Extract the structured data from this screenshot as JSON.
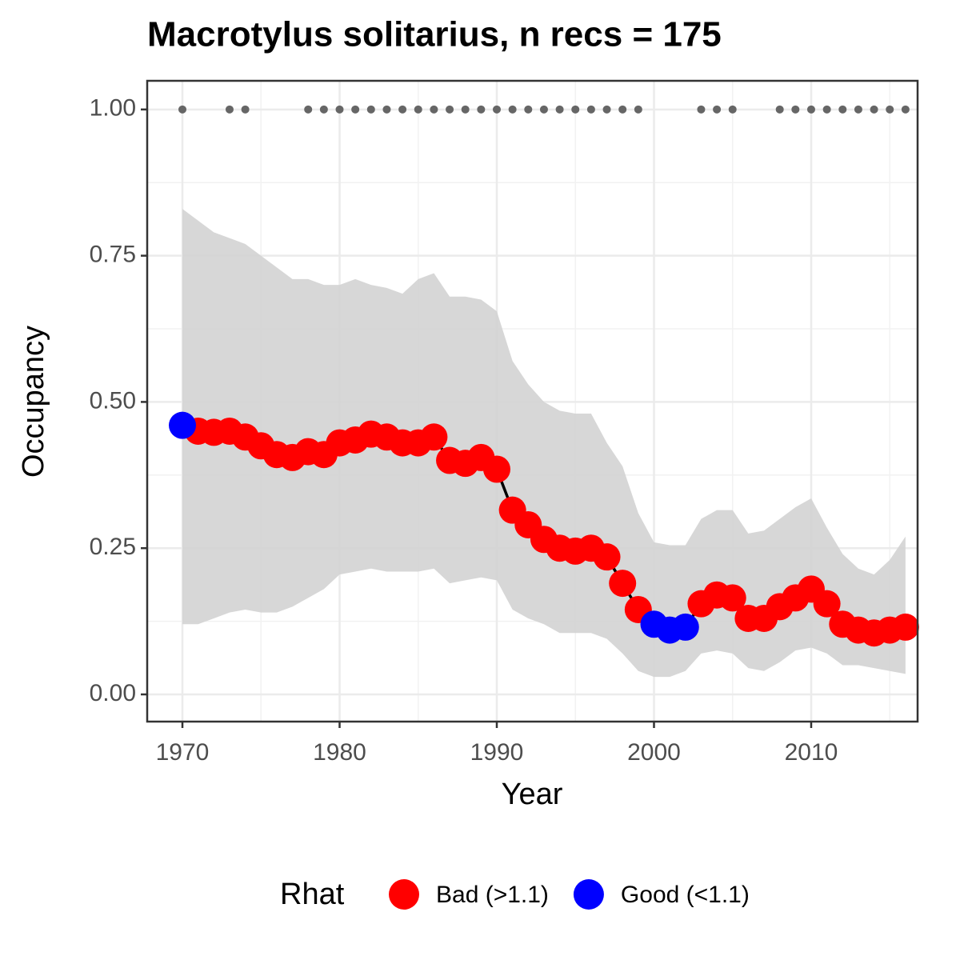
{
  "chart_data": {
    "type": "line",
    "title": "Macrotylus solitarius, n recs = 175",
    "x_label": "Year",
    "y_label": "Occupancy",
    "legend_title": "Rhat",
    "x": [
      1970,
      1971,
      1972,
      1973,
      1974,
      1975,
      1976,
      1977,
      1978,
      1979,
      1980,
      1981,
      1982,
      1983,
      1984,
      1985,
      1986,
      1987,
      1988,
      1989,
      1990,
      1991,
      1992,
      1993,
      1994,
      1995,
      1996,
      1997,
      1998,
      1999,
      2000,
      2001,
      2002,
      2003,
      2004,
      2005,
      2006,
      2007,
      2008,
      2009,
      2010,
      2011,
      2012,
      2013,
      2014,
      2015,
      2016
    ],
    "series": [
      {
        "name": "Bad (>1.1)",
        "color": "#ff0000",
        "values": [
          null,
          0.45,
          0.448,
          0.45,
          0.44,
          0.425,
          0.41,
          0.405,
          0.415,
          0.41,
          0.43,
          0.435,
          0.445,
          0.44,
          0.43,
          0.43,
          0.44,
          0.4,
          0.395,
          0.405,
          0.385,
          0.315,
          0.29,
          0.265,
          0.25,
          0.245,
          0.25,
          0.235,
          0.19,
          0.145,
          null,
          null,
          null,
          0.155,
          0.17,
          0.165,
          0.13,
          0.13,
          0.15,
          0.165,
          0.18,
          0.155,
          0.12,
          0.11,
          0.105,
          0.11,
          0.115
        ]
      },
      {
        "name": "Good (<1.1)",
        "color": "#0000ff",
        "values": [
          0.46,
          null,
          null,
          null,
          null,
          null,
          null,
          null,
          null,
          null,
          null,
          null,
          null,
          null,
          null,
          null,
          null,
          null,
          null,
          null,
          null,
          null,
          null,
          null,
          null,
          null,
          null,
          null,
          null,
          null,
          0.12,
          0.11,
          0.115,
          null,
          null,
          null,
          null,
          null,
          null,
          null,
          null,
          null,
          null,
          null,
          null,
          null,
          null
        ]
      }
    ],
    "band": {
      "color": "#d3d3d3",
      "upper": [
        0.83,
        0.81,
        0.79,
        0.78,
        0.77,
        0.75,
        0.73,
        0.71,
        0.71,
        0.7,
        0.7,
        0.71,
        0.7,
        0.695,
        0.685,
        0.71,
        0.72,
        0.68,
        0.68,
        0.675,
        0.655,
        0.57,
        0.53,
        0.5,
        0.485,
        0.48,
        0.48,
        0.43,
        0.39,
        0.31,
        0.26,
        0.255,
        0.255,
        0.3,
        0.315,
        0.315,
        0.275,
        0.28,
        0.3,
        0.32,
        0.335,
        0.285,
        0.24,
        0.215,
        0.205,
        0.23,
        0.27
      ],
      "lower": [
        0.12,
        0.12,
        0.13,
        0.14,
        0.145,
        0.14,
        0.14,
        0.15,
        0.165,
        0.18,
        0.205,
        0.21,
        0.215,
        0.21,
        0.21,
        0.21,
        0.215,
        0.19,
        0.195,
        0.2,
        0.195,
        0.145,
        0.13,
        0.12,
        0.105,
        0.105,
        0.105,
        0.095,
        0.07,
        0.04,
        0.03,
        0.03,
        0.04,
        0.07,
        0.075,
        0.07,
        0.045,
        0.04,
        0.055,
        0.075,
        0.08,
        0.07,
        0.05,
        0.05,
        0.045,
        0.04,
        0.035
      ]
    },
    "records": {
      "color": "#666666",
      "x": [
        1970,
        1973,
        1974,
        1978,
        1979,
        1980,
        1981,
        1982,
        1983,
        1984,
        1985,
        1986,
        1987,
        1988,
        1989,
        1990,
        1991,
        1992,
        1993,
        1994,
        1995,
        1996,
        1997,
        1998,
        1999,
        2003,
        2004,
        2005,
        2008,
        2009,
        2010,
        2011,
        2012,
        2013,
        2014,
        2015,
        2016
      ],
      "values": [
        1,
        1,
        1,
        1,
        1,
        1,
        1,
        1,
        1,
        1,
        1,
        1,
        1,
        1,
        1,
        1,
        1,
        1,
        1,
        1,
        1,
        1,
        1,
        1,
        1,
        1,
        1,
        1,
        1,
        1,
        1,
        1,
        1,
        1,
        1,
        1,
        1
      ]
    },
    "xlim": [
      1967.76,
      2016.77
    ],
    "ylim": [
      -0.0465,
      1.049
    ],
    "xticks": [
      1970,
      1980,
      1990,
      2000,
      2010
    ],
    "yticks": [
      {
        "value": 0,
        "label": "0.00"
      },
      {
        "value": 0.25,
        "label": "0.25"
      },
      {
        "value": 0.5,
        "label": "0.50"
      },
      {
        "value": 0.75,
        "label": "0.75"
      },
      {
        "value": 1,
        "label": "1.00"
      }
    ],
    "grid": true
  }
}
